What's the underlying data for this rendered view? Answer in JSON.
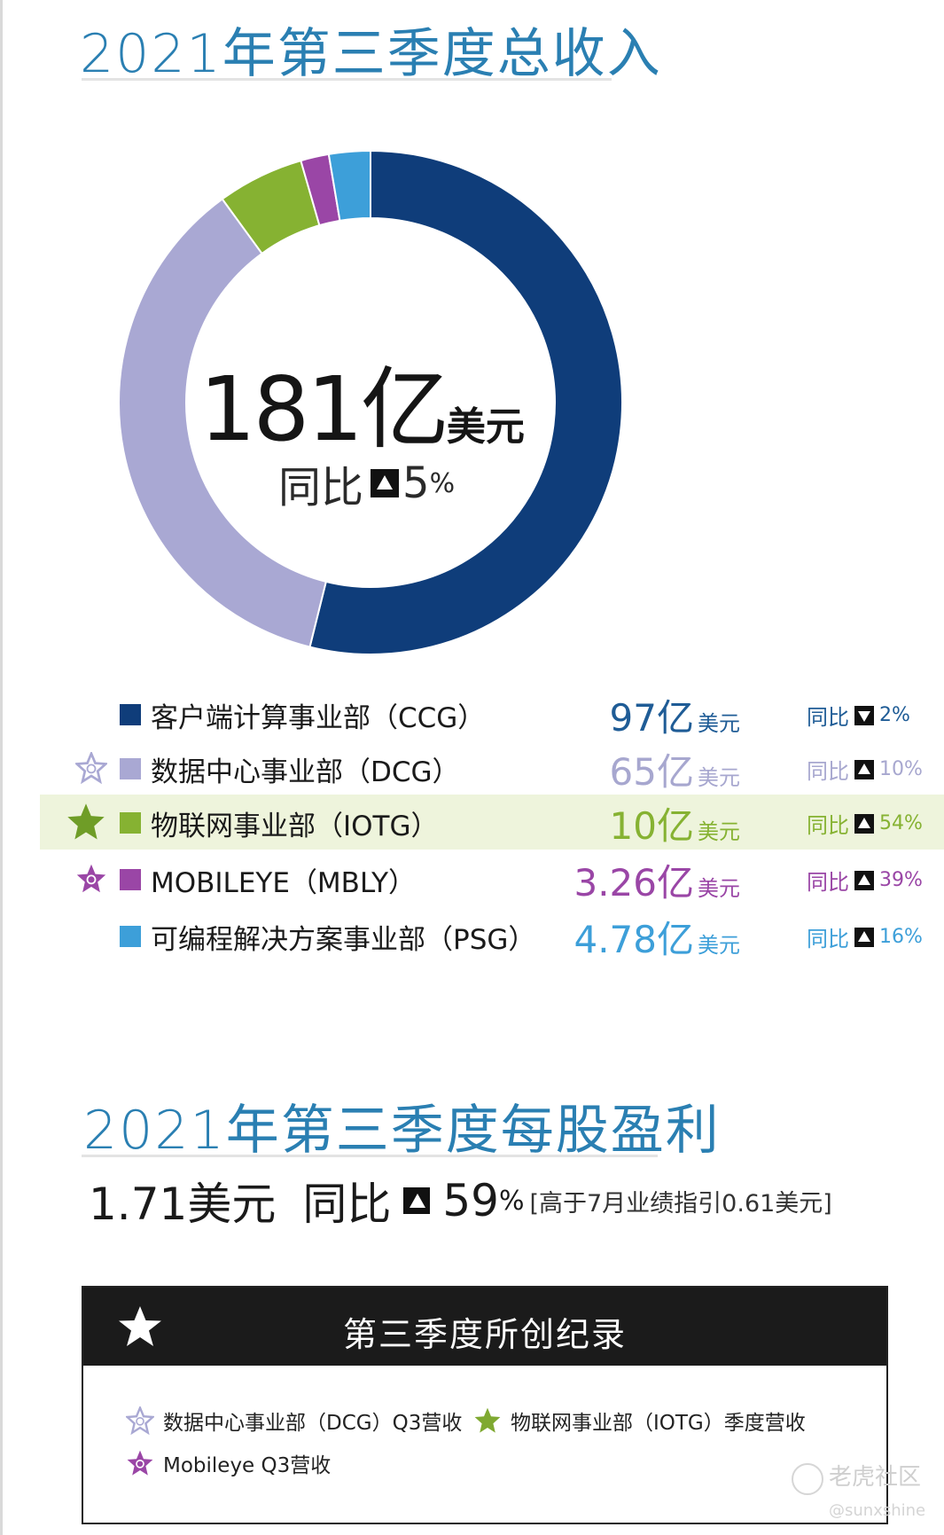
{
  "revenue": {
    "title": "2021年第三季度总收入",
    "total_value": "181亿",
    "total_unit": "美元",
    "yoy_label": "同比",
    "yoy_value": "5",
    "yoy_pct_sign": "%"
  },
  "chart_data": {
    "type": "pie",
    "title": "2021年第三季度总收入",
    "donut": true,
    "unit": "亿美元",
    "categories": [
      "客户端计算事业部（CCG）",
      "数据中心事业部（DCG）",
      "物联网事业部（IOTG）",
      "MOBILEYE（MBLY）",
      "可编程解决方案事业部（PSG）"
    ],
    "values": [
      97,
      65,
      10,
      3.26,
      4.78
    ],
    "colors": [
      "#0f3d7a",
      "#a9a8d3",
      "#86b232",
      "#9a46a6",
      "#3d9fd9"
    ],
    "yoy_change_pct": [
      -2,
      10,
      54,
      39,
      16
    ],
    "total": 181,
    "total_yoy_pct": 5
  },
  "legend": [
    {
      "label": "客户端计算事业部（CCG）",
      "value": "97亿",
      "unit": "美元",
      "yoy_label": "同比",
      "pct": "2%",
      "direction": "down",
      "color": "#0f3d7a",
      "value_color": "#1f5c96",
      "star": "none"
    },
    {
      "label": "数据中心事业部（DCG）",
      "value": "65亿",
      "unit": "美元",
      "yoy_label": "同比",
      "pct": "10%",
      "direction": "up",
      "color": "#a9a8d3",
      "value_color": "#a7a7cf",
      "star": "outline-lavender"
    },
    {
      "label": "物联网事业部（IOTG）",
      "value": "10亿",
      "unit": "美元",
      "yoy_label": "同比",
      "pct": "54%",
      "direction": "up",
      "color": "#86b232",
      "value_color": "#86b232",
      "star": "solid-green"
    },
    {
      "label": "MOBILEYE（MBLY）",
      "value": "3.26亿",
      "unit": "美元",
      "yoy_label": "同比",
      "pct": "39%",
      "direction": "up",
      "color": "#9a46a6",
      "value_color": "#9a46a6",
      "star": "purple-badge"
    },
    {
      "label": "可编程解决方案事业部（PSG）",
      "value": "4.78亿",
      "unit": "美元",
      "yoy_label": "同比",
      "pct": "16%",
      "direction": "up",
      "color": "#3d9fd9",
      "value_color": "#3d9fd9",
      "star": "none"
    }
  ],
  "eps": {
    "title": "2021年第三季度每股盈利",
    "value": "1.71美元",
    "yoy_label": "同比",
    "yoy_value": "59",
    "pct_sign": "%",
    "note": "[高于7月业绩指引0.61美元]"
  },
  "records": {
    "header": "第三季度所创纪录",
    "items": [
      {
        "text": "数据中心事业部（DCG）Q3营收",
        "star": "outline-lavender"
      },
      {
        "text": "物联网事业部（IOTG）季度营收",
        "star": "solid-green"
      },
      {
        "text": "Mobileye Q3营收",
        "star": "purple-badge"
      }
    ]
  },
  "watermark": {
    "brand": "老虎社区",
    "user": "@sunxshine"
  }
}
